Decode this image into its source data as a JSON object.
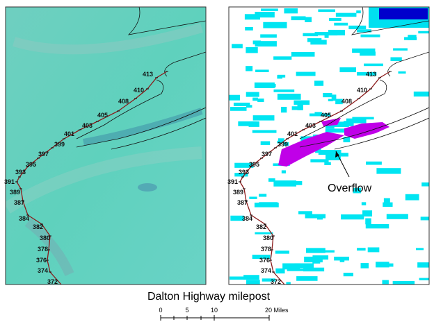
{
  "left_panel": {
    "mileposts": [
      "413",
      "410",
      "408",
      "405",
      "403",
      "401",
      "399",
      "397",
      "395",
      "393",
      "391",
      "389",
      "387",
      "384",
      "382",
      "380",
      "378",
      "376",
      "374",
      "372"
    ]
  },
  "right_panel": {
    "mileposts": [
      "413",
      "410",
      "408",
      "405",
      "403",
      "401",
      "399",
      "397",
      "395",
      "393",
      "391",
      "389",
      "387",
      "384",
      "382",
      "380",
      "378",
      "376",
      "374",
      "372"
    ],
    "annotation": "Overflow"
  },
  "caption": "Dalton Highway milepost",
  "scale_bar": {
    "labels": [
      "0",
      "5",
      "10",
      "20 Miles"
    ]
  }
}
